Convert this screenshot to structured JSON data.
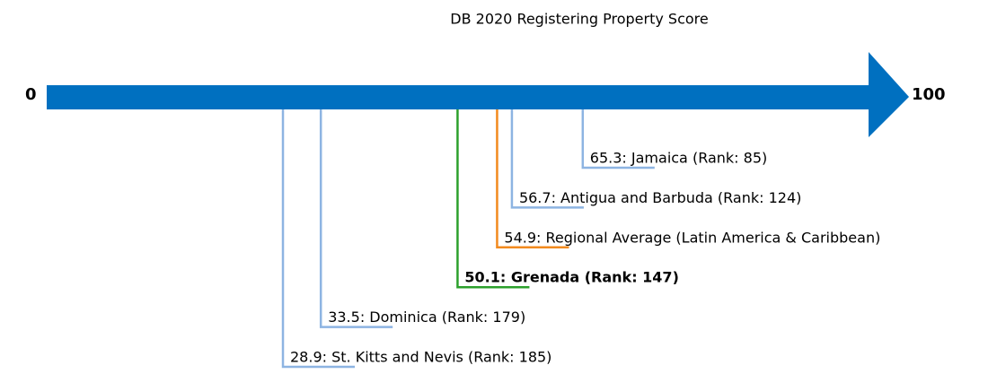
{
  "chart_data": {
    "type": "number-line",
    "title": "DB 2020 Registering Property Score",
    "xlim": [
      0,
      100
    ],
    "xticks": [
      0,
      100
    ],
    "arrow_color": "#0070c0",
    "values": [
      65.3,
      56.7,
      54.9,
      50.1,
      33.5,
      28.9
    ],
    "value_labels": [
      "65.3: Jamaica (Rank: 85)",
      "56.7: Antigua and Barbuda (Rank: 124)",
      "54.9: Regional Average (Latin America & Caribbean)",
      "50.1: Grenada (Rank: 147)",
      "33.5: Dominica (Rank: 179)",
      "28.9: St. Kitts and Nevis (Rank: 185)"
    ],
    "colors": [
      "#8db4e2",
      "#8db4e2",
      "#f28a1e",
      "#2ca02c",
      "#8db4e2",
      "#8db4e2"
    ],
    "highlight": 3
  }
}
